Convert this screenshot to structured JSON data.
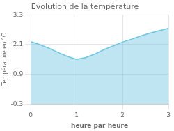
{
  "chart_data": {
    "type": "area",
    "title": "Evolution de la température",
    "xlabel": "heure par heure",
    "ylabel": "Température en °C",
    "x": [
      0,
      0.2,
      0.4,
      0.6,
      0.8,
      1.0,
      1.2,
      1.4,
      1.6,
      1.8,
      2.0,
      2.2,
      2.4,
      2.6,
      2.8,
      3.0
    ],
    "values": [
      2.22,
      2.1,
      1.95,
      1.78,
      1.62,
      1.5,
      1.58,
      1.72,
      1.9,
      2.05,
      2.2,
      2.32,
      2.45,
      2.56,
      2.66,
      2.75
    ],
    "color": "#6ec6e0",
    "xlim": [
      0,
      3
    ],
    "ylim": [
      -0.3,
      3.3
    ],
    "xticks": [
      0,
      1,
      2,
      3
    ],
    "yticks": [
      -0.3,
      0.9,
      2.1,
      3.3
    ],
    "grid": true
  }
}
